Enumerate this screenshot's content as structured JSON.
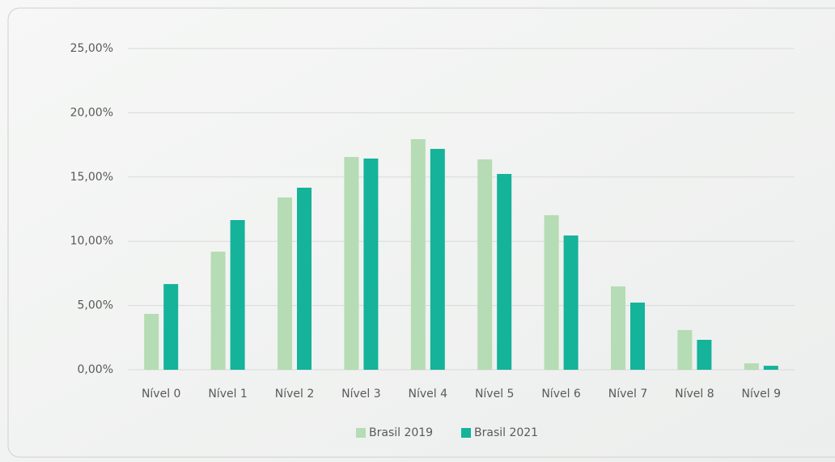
{
  "chart_data": {
    "type": "bar",
    "categories": [
      "Nível 0",
      "Nível 1",
      "Nível 2",
      "Nível 3",
      "Nível 4",
      "Nível 5",
      "Nível 6",
      "Nível 7",
      "Nível 8",
      "Nível 9"
    ],
    "series": [
      {
        "name": "Brasil 2019",
        "color": "#b5dcb4",
        "values": [
          4.35,
          9.19,
          13.41,
          16.56,
          17.95,
          16.37,
          12.03,
          6.49,
          3.09,
          0.5
        ]
      },
      {
        "name": "Brasil 2021",
        "color": "#14b39a",
        "values": [
          6.67,
          11.65,
          14.17,
          16.44,
          17.19,
          15.24,
          10.45,
          5.23,
          2.33,
          0.31
        ]
      }
    ],
    "ylim": [
      0,
      25
    ],
    "yticks": [
      {
        "value": 0,
        "label": "0,00%"
      },
      {
        "value": 5,
        "label": "5,00%"
      },
      {
        "value": 10,
        "label": "10,00%"
      },
      {
        "value": 15,
        "label": "15,00%"
      },
      {
        "value": 20,
        "label": "20,00%"
      },
      {
        "value": 25,
        "label": "25,00%"
      }
    ],
    "grid": true,
    "legend": "bottom"
  }
}
